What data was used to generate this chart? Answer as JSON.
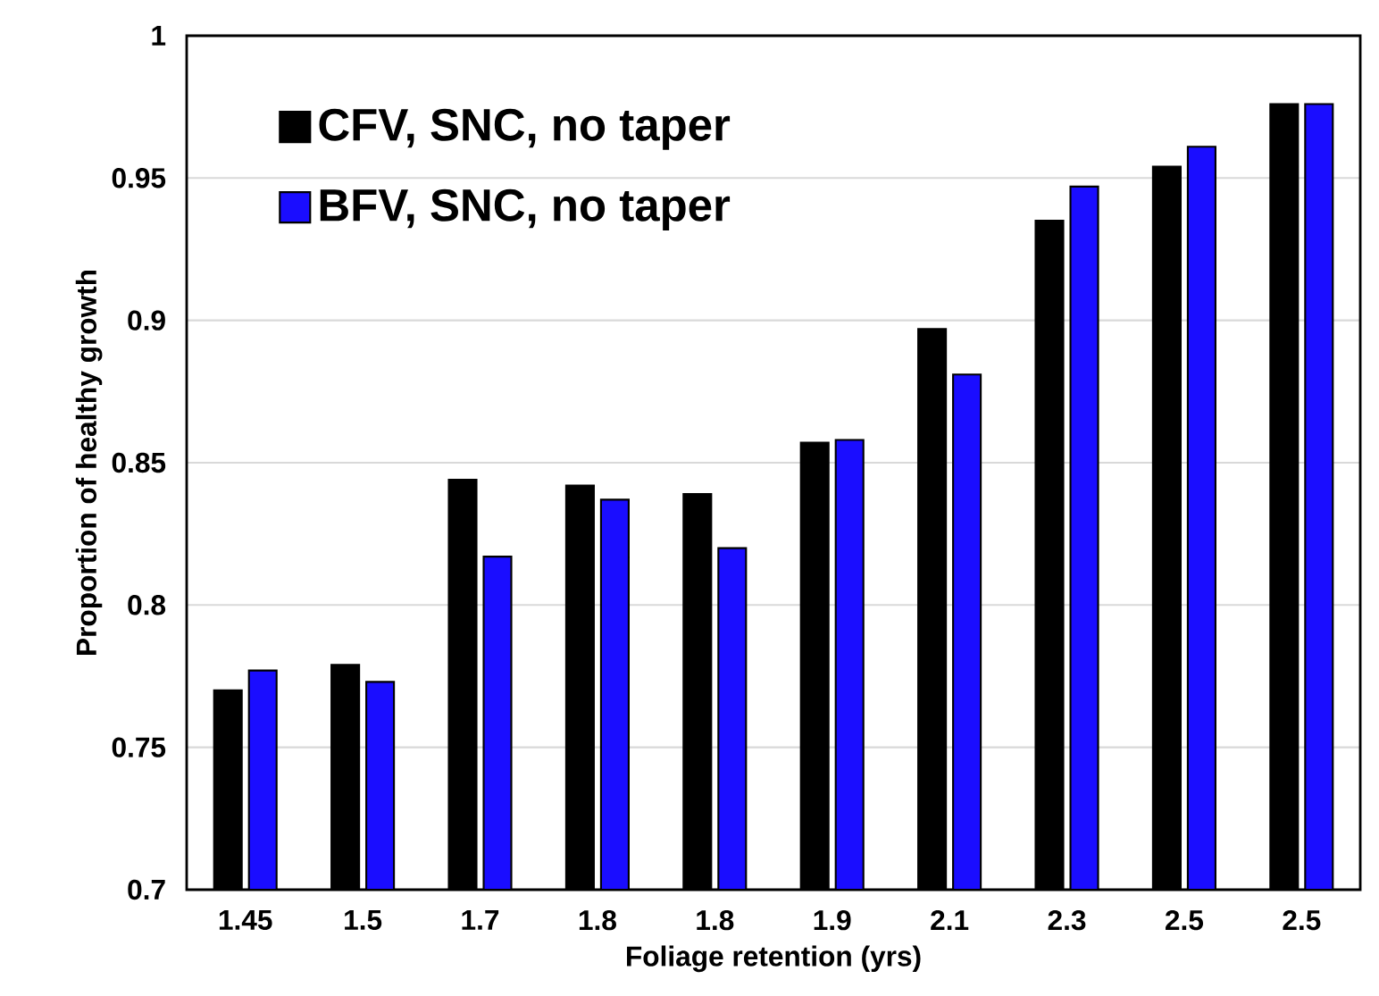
{
  "chart_data": {
    "type": "bar",
    "xlabel": "Foliage retention (yrs)",
    "ylabel": "Proportion of healthy growth",
    "categories": [
      "1.45",
      "1.5",
      "1.7",
      "1.8",
      "1.8",
      "1.9",
      "2.1",
      "2.3",
      "2.5",
      "2.5"
    ],
    "series": [
      {
        "name": "CFV, SNC, no taper",
        "color": "#000000",
        "values": [
          0.77,
          0.779,
          0.844,
          0.842,
          0.839,
          0.857,
          0.897,
          0.935,
          0.954,
          0.976
        ]
      },
      {
        "name": "BFV, SNC, no taper",
        "color": "#1a0dff",
        "values": [
          0.777,
          0.773,
          0.817,
          0.837,
          0.82,
          0.858,
          0.881,
          0.947,
          0.961,
          0.976
        ]
      }
    ],
    "ylim": [
      0.7,
      1
    ],
    "yticks": [
      0.7,
      0.75,
      0.8,
      0.85,
      0.9,
      0.95,
      1
    ],
    "grid": "y",
    "legend": "top left"
  }
}
